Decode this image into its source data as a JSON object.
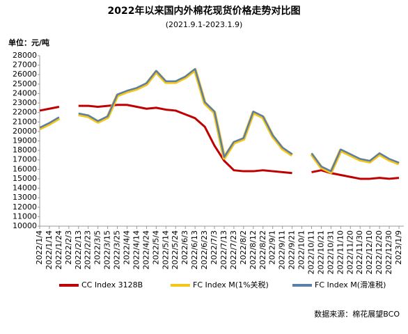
{
  "chart_data": {
    "type": "line",
    "title": "2022年以来国内外棉花现货价格走势对比图",
    "subtitle": "(2021.9.1-2023.1.9)",
    "unit": "单位：元/吨",
    "source": "数据来源：棉花展望BCO",
    "categories": [
      "2022/1/4",
      "2022/1/14",
      "2022/1/24",
      "2022/2/3",
      "2022/2/13",
      "2022/2/23",
      "2022/3/5",
      "2022/3/15",
      "2022/3/25",
      "2022/4/4",
      "2022/4/14",
      "2022/4/24",
      "2022/5/4",
      "2022/5/14",
      "2022/5/24",
      "2022/6/3",
      "2022/6/13",
      "2022/6/23",
      "2022/7/3",
      "2022/7/13",
      "2022/7/23",
      "2022/8/2",
      "2022/8/12",
      "2022/8/22",
      "2022/9/1",
      "2022/9/11",
      "2022/9/21",
      "2022/10/1",
      "2022/10/11",
      "2022/10/21",
      "2022/10/31",
      "2022/11/10",
      "2022/11/20",
      "2022/11/30",
      "2022/12/10",
      "2022/12/20",
      "2022/12/30",
      "2023/1/9"
    ],
    "series": [
      {
        "name": "CC Index 3128B",
        "color": "#c00000",
        "width": 3,
        "values": [
          22200,
          22400,
          22600,
          null,
          22700,
          22700,
          22600,
          22700,
          22800,
          22800,
          22600,
          22400,
          22500,
          22300,
          22200,
          21800,
          21400,
          20500,
          18500,
          16900,
          15900,
          15800,
          15800,
          15900,
          15800,
          15700,
          15600,
          null,
          15700,
          15900,
          15600,
          15400,
          15200,
          15000,
          15000,
          15100,
          15000,
          15100
        ]
      },
      {
        "name": "FC Index M(1%关税)",
        "color": "#f5c518",
        "width": 5,
        "values": [
          20300,
          20800,
          21400,
          null,
          21800,
          21600,
          21000,
          21500,
          23800,
          24200,
          24500,
          25000,
          26300,
          25200,
          25200,
          25700,
          26500,
          23000,
          22000,
          17200,
          18800,
          19200,
          22000,
          21500,
          19500,
          18200,
          17500,
          null,
          17600,
          16200,
          15700,
          18000,
          17500,
          17000,
          16800,
          17600,
          17000,
          16600
        ]
      },
      {
        "name": "FC Index M(滑准税)",
        "color": "#5b7fa6",
        "width": 2.5,
        "values": [
          20400,
          20900,
          21500,
          null,
          21900,
          21700,
          21100,
          21600,
          23900,
          24300,
          24600,
          25100,
          26400,
          25300,
          25300,
          25800,
          26600,
          23100,
          22100,
          17300,
          18900,
          19300,
          22100,
          21600,
          19600,
          18300,
          17600,
          null,
          17700,
          16300,
          15800,
          18100,
          17600,
          17100,
          16900,
          17700,
          17100,
          16700
        ]
      }
    ],
    "ylim": [
      10000,
      28000
    ],
    "yticks": [
      10000,
      11000,
      12000,
      13000,
      14000,
      15000,
      16000,
      17000,
      18000,
      19000,
      20000,
      21000,
      22000,
      23000,
      24000,
      25000,
      26000,
      27000,
      28000
    ]
  }
}
